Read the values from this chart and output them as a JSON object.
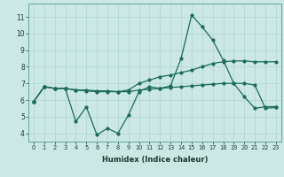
{
  "title": "",
  "xlabel": "Humidex (Indice chaleur)",
  "ylabel": "",
  "background_color": "#cce8e4",
  "line_color": "#1a6b5a",
  "xlim": [
    -0.5,
    23.5
  ],
  "ylim": [
    3.5,
    11.8
  ],
  "yticks": [
    4,
    5,
    6,
    7,
    8,
    9,
    10,
    11
  ],
  "xticks": [
    0,
    1,
    2,
    3,
    4,
    5,
    6,
    7,
    8,
    9,
    10,
    11,
    12,
    13,
    14,
    15,
    16,
    17,
    18,
    19,
    20,
    21,
    22,
    23
  ],
  "line1_x": [
    0,
    1,
    2,
    3,
    4,
    5,
    6,
    7,
    8,
    9,
    10,
    11,
    12,
    13,
    14,
    15,
    16,
    17,
    18,
    19,
    20,
    21,
    22,
    23
  ],
  "line1_y": [
    5.9,
    6.8,
    6.7,
    6.7,
    4.7,
    5.6,
    3.9,
    4.3,
    4.0,
    5.1,
    6.5,
    6.8,
    6.7,
    6.85,
    8.5,
    11.1,
    10.4,
    9.6,
    8.4,
    7.0,
    6.2,
    5.5,
    5.6,
    5.6
  ],
  "line2_x": [
    0,
    1,
    2,
    3,
    4,
    5,
    6,
    7,
    8,
    9,
    10,
    11,
    12,
    13,
    14,
    15,
    16,
    17,
    18,
    19,
    20,
    21,
    22,
    23
  ],
  "line2_y": [
    5.9,
    6.8,
    6.7,
    6.7,
    6.6,
    6.6,
    6.55,
    6.55,
    6.5,
    6.6,
    7.0,
    7.2,
    7.4,
    7.5,
    7.65,
    7.8,
    8.0,
    8.2,
    8.3,
    8.35,
    8.35,
    8.3,
    8.3,
    8.3
  ],
  "line3_x": [
    0,
    1,
    2,
    3,
    4,
    5,
    6,
    7,
    8,
    9,
    10,
    11,
    12,
    13,
    14,
    15,
    16,
    17,
    18,
    19,
    20,
    21,
    22,
    23
  ],
  "line3_y": [
    5.9,
    6.8,
    6.7,
    6.7,
    6.6,
    6.55,
    6.5,
    6.5,
    6.5,
    6.5,
    6.6,
    6.65,
    6.7,
    6.75,
    6.8,
    6.85,
    6.9,
    6.95,
    7.0,
    7.0,
    7.0,
    6.9,
    5.5,
    5.55
  ],
  "grid_color": "#aad4cc",
  "spine_color": "#5aaa99",
  "tick_color": "#1a3a30",
  "xlabel_fontsize": 6.0,
  "ytick_fontsize": 5.5,
  "xtick_fontsize": 4.8,
  "linewidth": 0.9,
  "markersize": 2.0
}
